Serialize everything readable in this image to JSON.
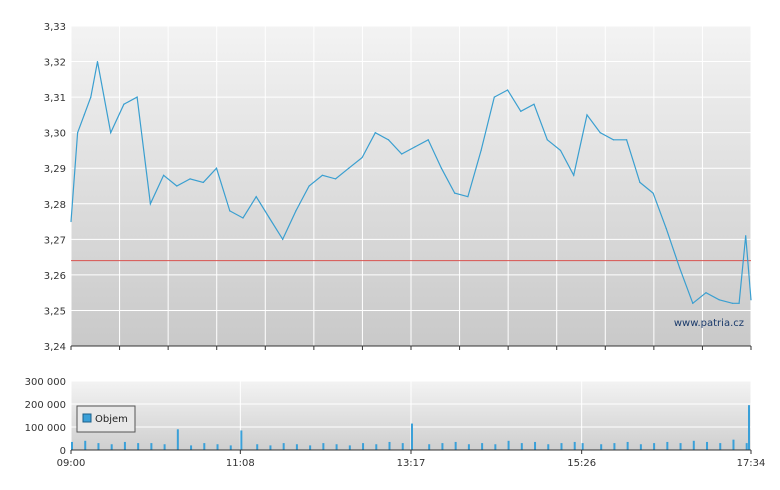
{
  "chart_data": [
    {
      "type": "line",
      "title": "",
      "xlabel": "",
      "ylabel": "",
      "ylim": [
        3.24,
        3.33
      ],
      "y_ticks": [
        "3,24",
        "3,25",
        "3,26",
        "3,27",
        "3,28",
        "3,29",
        "3,30",
        "3,31",
        "3,32",
        "3,33"
      ],
      "reference_line": 3.264,
      "watermark": "www.patria.cz",
      "grid": true,
      "series": [
        {
          "x": [
            "09:00",
            "09:05",
            "09:10",
            "09:15",
            "09:20",
            "09:30",
            "09:40",
            "09:50",
            "10:00",
            "10:10",
            "10:20",
            "10:30",
            "10:40",
            "10:50",
            "11:00",
            "11:10",
            "11:20",
            "11:30",
            "11:40",
            "11:50",
            "12:00",
            "12:10",
            "12:20",
            "12:30",
            "12:40",
            "12:50",
            "13:00",
            "13:10",
            "13:20",
            "13:30",
            "13:40",
            "13:50",
            "14:00",
            "14:10",
            "14:20",
            "14:30",
            "14:40",
            "14:50",
            "15:00",
            "15:10",
            "15:20",
            "15:30",
            "15:40",
            "15:50",
            "16:00",
            "16:10",
            "16:20",
            "16:30",
            "16:40",
            "16:50",
            "17:00",
            "17:10",
            "17:20",
            "17:25",
            "17:30",
            "17:34"
          ],
          "values": [
            3.275,
            3.3,
            3.305,
            3.31,
            3.32,
            3.3,
            3.308,
            3.31,
            3.28,
            3.288,
            3.285,
            3.287,
            3.286,
            3.29,
            3.278,
            3.276,
            3.282,
            3.276,
            3.27,
            3.278,
            3.285,
            3.288,
            3.287,
            3.29,
            3.293,
            3.3,
            3.298,
            3.294,
            3.296,
            3.298,
            3.29,
            3.283,
            3.282,
            3.295,
            3.31,
            3.312,
            3.306,
            3.308,
            3.298,
            3.295,
            3.288,
            3.305,
            3.3,
            3.298,
            3.298,
            3.286,
            3.283,
            3.273,
            3.262,
            3.252,
            3.255,
            3.253,
            3.252,
            3.252,
            3.271,
            3.253
          ]
        }
      ]
    },
    {
      "type": "bar",
      "title": "",
      "ylim": [
        0,
        300000
      ],
      "y_ticks": [
        "0",
        "100 000",
        "200 000",
        "300 000"
      ],
      "x_ticks": [
        "09:00",
        "11:08",
        "13:17",
        "15:26",
        "17:34"
      ],
      "legend": "Objem",
      "series": [
        {
          "name": "Objem",
          "x": [
            "09:00",
            "09:10",
            "09:20",
            "09:30",
            "09:40",
            "09:50",
            "10:00",
            "10:10",
            "10:20",
            "10:30",
            "10:40",
            "10:50",
            "11:00",
            "11:08",
            "11:20",
            "11:30",
            "11:40",
            "11:50",
            "12:00",
            "12:10",
            "12:20",
            "12:30",
            "12:40",
            "12:50",
            "13:00",
            "13:10",
            "13:17",
            "13:30",
            "13:40",
            "13:50",
            "14:00",
            "14:10",
            "14:20",
            "14:30",
            "14:40",
            "14:50",
            "15:00",
            "15:10",
            "15:20",
            "15:26",
            "15:40",
            "15:50",
            "16:00",
            "16:10",
            "16:20",
            "16:30",
            "16:40",
            "16:50",
            "17:00",
            "17:10",
            "17:20",
            "17:30",
            "17:33",
            "17:34"
          ],
          "values": [
            35000,
            40000,
            30000,
            25000,
            35000,
            30000,
            30000,
            25000,
            90000,
            20000,
            30000,
            25000,
            20000,
            85000,
            25000,
            20000,
            30000,
            25000,
            20000,
            30000,
            25000,
            20000,
            30000,
            25000,
            35000,
            30000,
            115000,
            25000,
            30000,
            35000,
            25000,
            30000,
            25000,
            40000,
            30000,
            35000,
            25000,
            30000,
            35000,
            30000,
            25000,
            30000,
            35000,
            25000,
            30000,
            35000,
            30000,
            40000,
            35000,
            30000,
            45000,
            30000,
            195000,
            150000
          ]
        }
      ]
    }
  ]
}
